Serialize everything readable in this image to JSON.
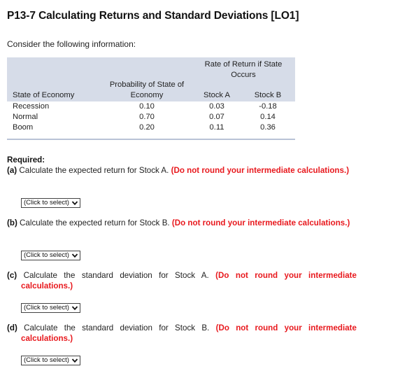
{
  "title": "P13-7 Calculating Returns and Standard Deviations [LO1]",
  "intro": "Consider the following information:",
  "table": {
    "group_header": [
      "Rate of Return if State",
      "Occurs"
    ],
    "col_prob_header": [
      "Probability of State of",
      "Economy"
    ],
    "col_state_header": "State of Economy",
    "col_a_header": "Stock A",
    "col_b_header": "Stock B",
    "rows": [
      {
        "state": "Recession",
        "prob": "0.10",
        "a": "0.03",
        "b": "-0.18"
      },
      {
        "state": "Normal",
        "prob": "0.70",
        "a": "0.07",
        "b": "0.14"
      },
      {
        "state": "Boom",
        "prob": "0.20",
        "a": "0.11",
        "b": "0.36"
      }
    ]
  },
  "required_label": "Required:",
  "questions": [
    {
      "label": "(a)",
      "text": "Calculate the expected return for Stock A.",
      "note": "(Do not round your intermediate calculations.)",
      "select": "(Click to select)"
    },
    {
      "label": "(b)",
      "text": "Calculate the expected return for Stock B.",
      "note": "(Do not round your intermediate calculations.)",
      "select": "(Click to select)"
    },
    {
      "label": "(c)",
      "text": "Calculate the standard deviation for Stock A.",
      "note": "(Do not round your intermediate calculations.)",
      "select": "(Click to select)"
    },
    {
      "label": "(d)",
      "text": "Calculate the standard deviation for Stock B.",
      "note": "(Do not round your intermediate calculations.)",
      "select": "(Click to select)"
    }
  ]
}
